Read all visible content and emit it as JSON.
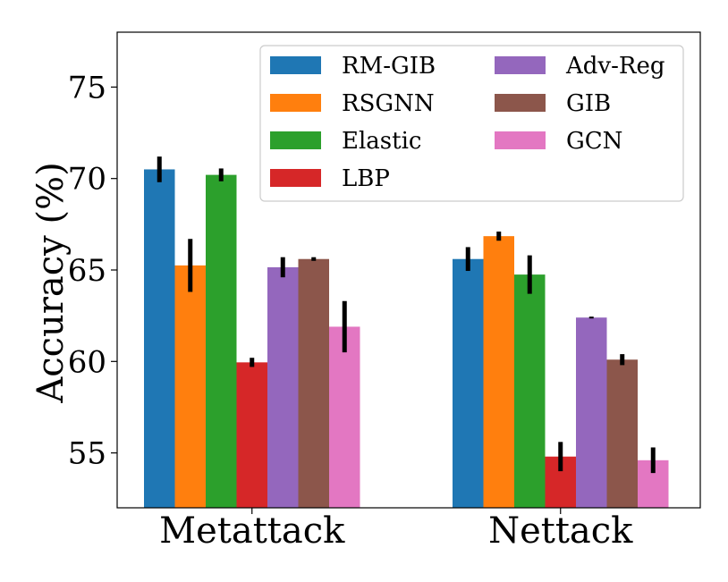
{
  "chart_data": {
    "type": "bar",
    "title": "",
    "xlabel": "",
    "ylabel": "Accuracy (%)",
    "ylim": [
      52,
      78
    ],
    "yticks": [
      55,
      60,
      65,
      70,
      75
    ],
    "grid": false,
    "legend_position": "top-right",
    "categories": [
      "Metattack",
      "Nettack"
    ],
    "series": [
      {
        "name": "RM-GIB",
        "color": "#1f77b4",
        "values": [
          70.5,
          65.6
        ],
        "errors": [
          0.7,
          0.65
        ]
      },
      {
        "name": "RSGNN",
        "color": "#ff7f0e",
        "values": [
          65.25,
          66.85
        ],
        "errors": [
          1.45,
          0.25
        ]
      },
      {
        "name": "Elastic",
        "color": "#2ca02c",
        "values": [
          70.2,
          64.75
        ],
        "errors": [
          0.35,
          1.05
        ]
      },
      {
        "name": "LBP",
        "color": "#d62728",
        "values": [
          59.95,
          54.8
        ],
        "errors": [
          0.25,
          0.8
        ]
      },
      {
        "name": "Adv-Reg",
        "color": "#9467bd",
        "values": [
          65.15,
          62.4
        ],
        "errors": [
          0.55,
          0.05
        ]
      },
      {
        "name": "GIB",
        "color": "#8c564b",
        "values": [
          65.6,
          60.1
        ],
        "errors": [
          0.1,
          0.3
        ]
      },
      {
        "name": "GCN",
        "color": "#e377c2",
        "values": [
          61.9,
          54.6
        ],
        "errors": [
          1.4,
          0.7
        ]
      }
    ]
  }
}
